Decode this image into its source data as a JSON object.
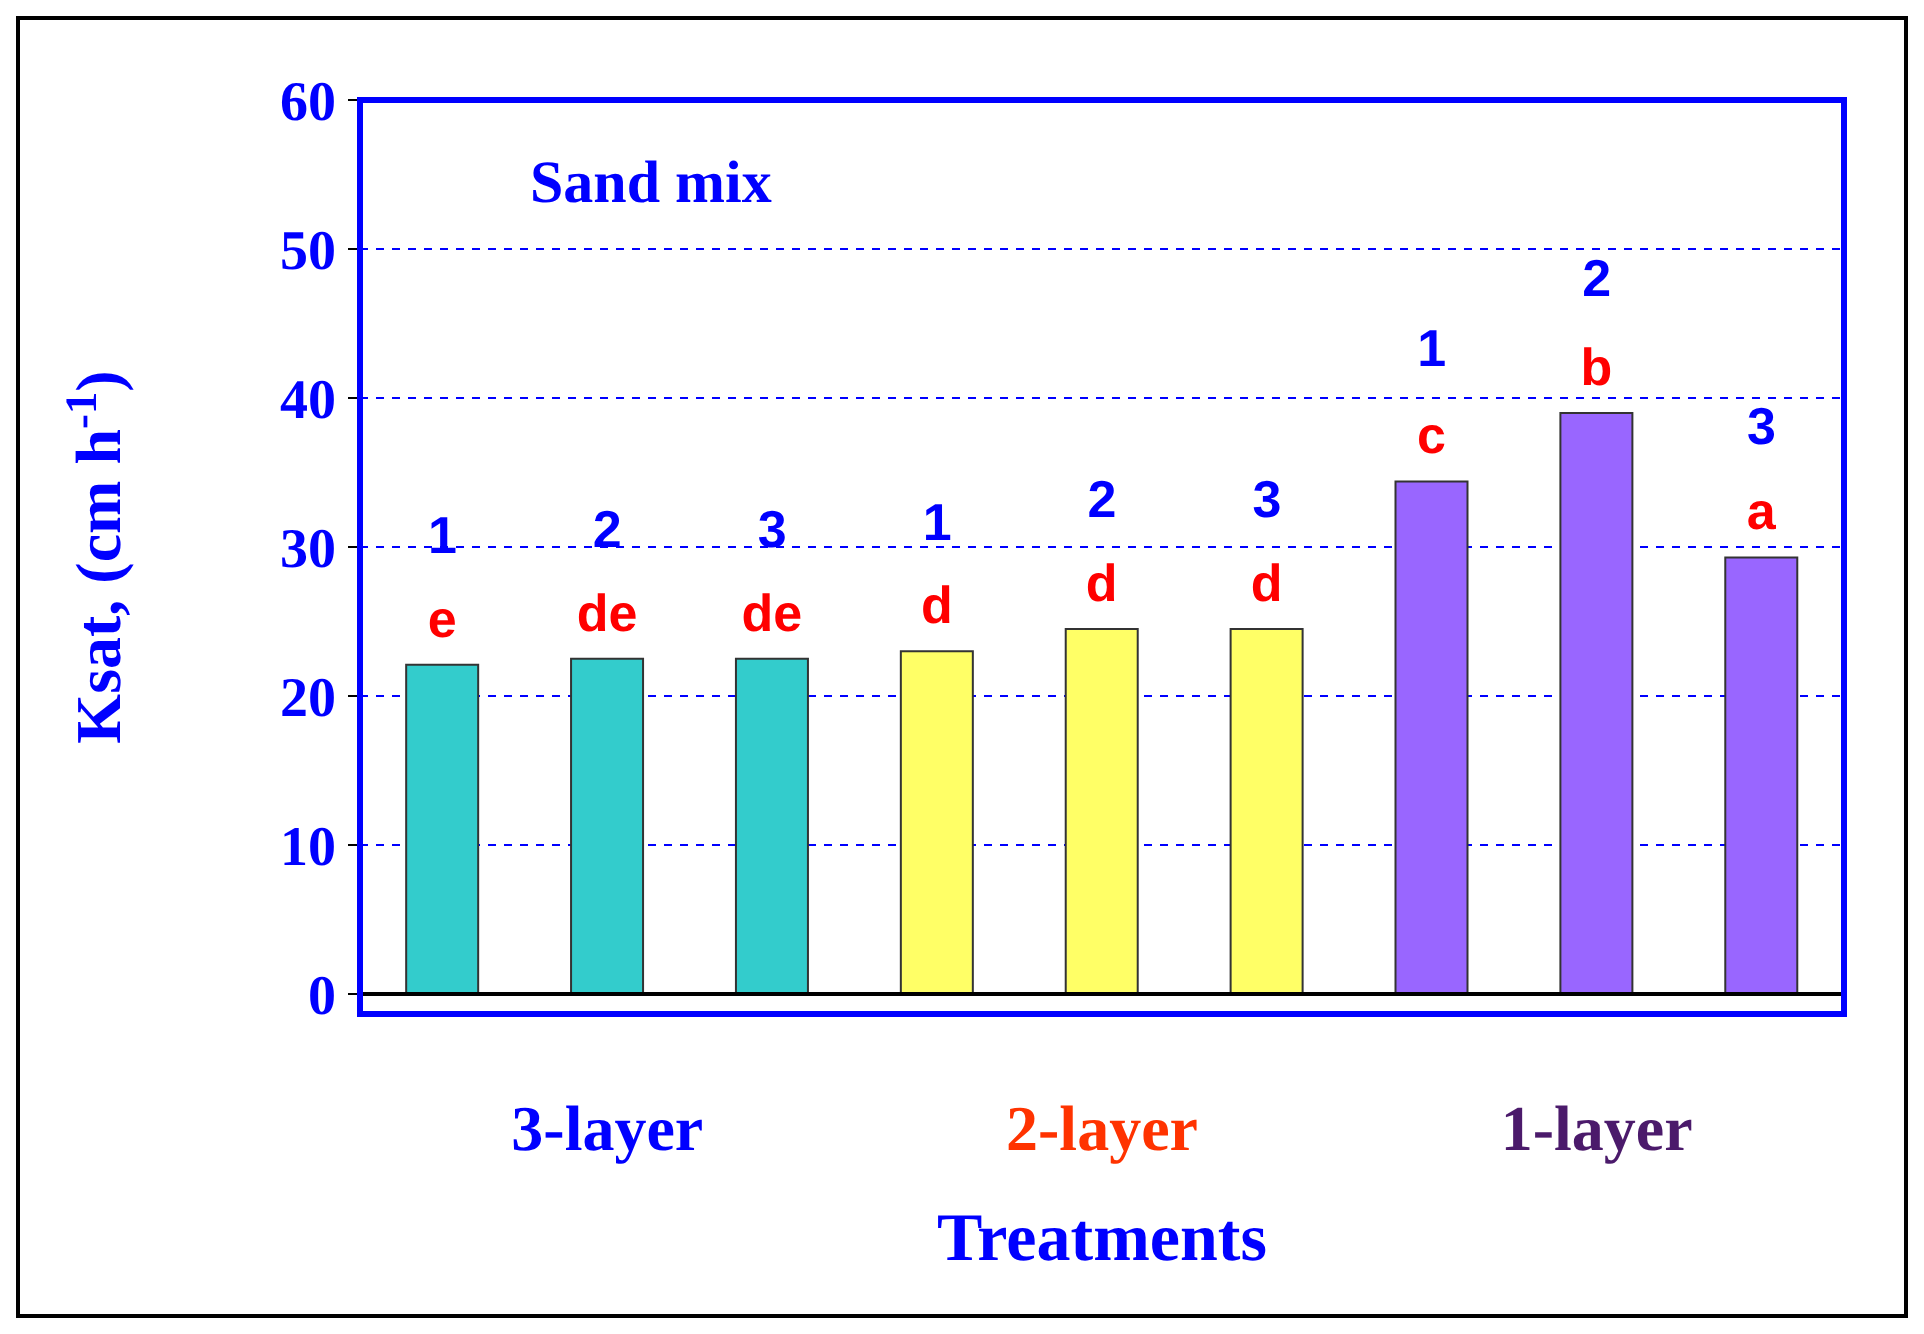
{
  "chart_data": {
    "type": "bar",
    "ylabel": "Ksat, (cm h$^{-1}$)",
    "xlabel": "Treatments",
    "categories": [
      null,
      null,
      null,
      null,
      null,
      null,
      null,
      null,
      null
    ],
    "values": [
      22.1,
      22.5,
      22.5,
      23.0,
      24.5,
      24.5,
      34.4,
      39.0,
      29.3
    ],
    "colors": [
      "#33cccc",
      "#33cccc",
      "#33cccc",
      "#ffff66",
      "#ffff66",
      "#ffff66",
      "#9966ff",
      "#9966ff",
      "#9966ff"
    ],
    "value_labels": [
      "e",
      "de",
      "de",
      "d",
      "d",
      "d",
      "c",
      "b",
      "a"
    ],
    "ylim": [
      0,
      60
    ],
    "yticks": [
      0,
      10,
      20,
      30,
      40,
      50,
      60
    ],
    "grid": "y",
    "annotations": [
      "Sand mix",
      "3-layer",
      "2-layer",
      "1-layer",
      "1",
      "2",
      "3",
      "1",
      "2",
      "3",
      "1",
      "2",
      "3"
    ]
  }
}
